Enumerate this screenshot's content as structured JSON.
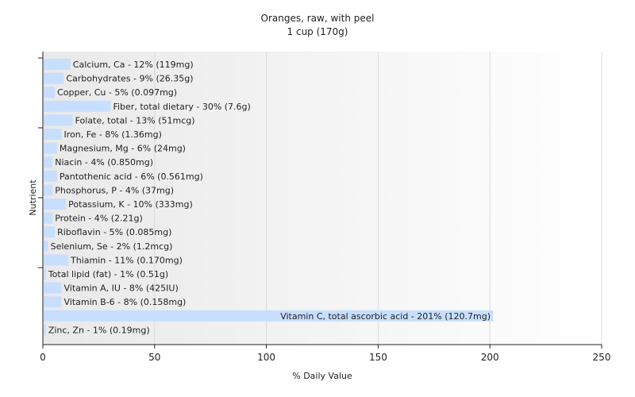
{
  "chart_data": {
    "type": "bar",
    "orientation": "horizontal",
    "title": "Oranges, raw, with peel",
    "subtitle": "1 cup (170g)",
    "xlabel": "% Daily Value",
    "ylabel": "Nutrient",
    "xlim": [
      0,
      250
    ],
    "xticks": [
      0,
      50,
      100,
      150,
      200,
      250
    ],
    "grid": true,
    "bar_color": "#c7deff",
    "categories": [
      "Calcium, Ca",
      "Carbohydrates",
      "Copper, Cu",
      "Fiber, total dietary",
      "Folate, total",
      "Iron, Fe",
      "Magnesium, Mg",
      "Niacin",
      "Pantothenic acid",
      "Phosphorus, P",
      "Potassium, K",
      "Protein",
      "Riboflavin",
      "Selenium, Se",
      "Thiamin",
      "Total lipid (fat)",
      "Vitamin A, IU",
      "Vitamin B-6",
      "Vitamin C, total ascorbic acid",
      "Zinc, Zn"
    ],
    "values": [
      12,
      9,
      5,
      30,
      13,
      8,
      6,
      4,
      6,
      4,
      10,
      4,
      5,
      2,
      11,
      1,
      8,
      8,
      201,
      1
    ],
    "labels": [
      "Calcium, Ca - 12% (119mg)",
      "Carbohydrates - 9% (26.35g)",
      "Copper, Cu - 5% (0.097mg)",
      "Fiber, total dietary - 30% (7.6g)",
      "Folate, total - 13% (51mcg)",
      "Iron, Fe - 8% (1.36mg)",
      "Magnesium, Mg - 6% (24mg)",
      "Niacin - 4% (0.850mg)",
      "Pantothenic acid - 6% (0.561mg)",
      "Phosphorus, P - 4% (37mg)",
      "Potassium, K - 10% (333mg)",
      "Protein - 4% (2.21g)",
      "Riboflavin - 5% (0.085mg)",
      "Selenium, Se - 2% (1.2mcg)",
      "Thiamin - 11% (0.170mg)",
      "Total lipid (fat) - 1% (0.51g)",
      "Vitamin A, IU - 8% (425IU)",
      "Vitamin B-6 - 8% (0.158mg)",
      "Vitamin C, total ascorbic acid - 201% (120.7mg)",
      "Zinc, Zn - 1% (0.19mg)"
    ]
  }
}
